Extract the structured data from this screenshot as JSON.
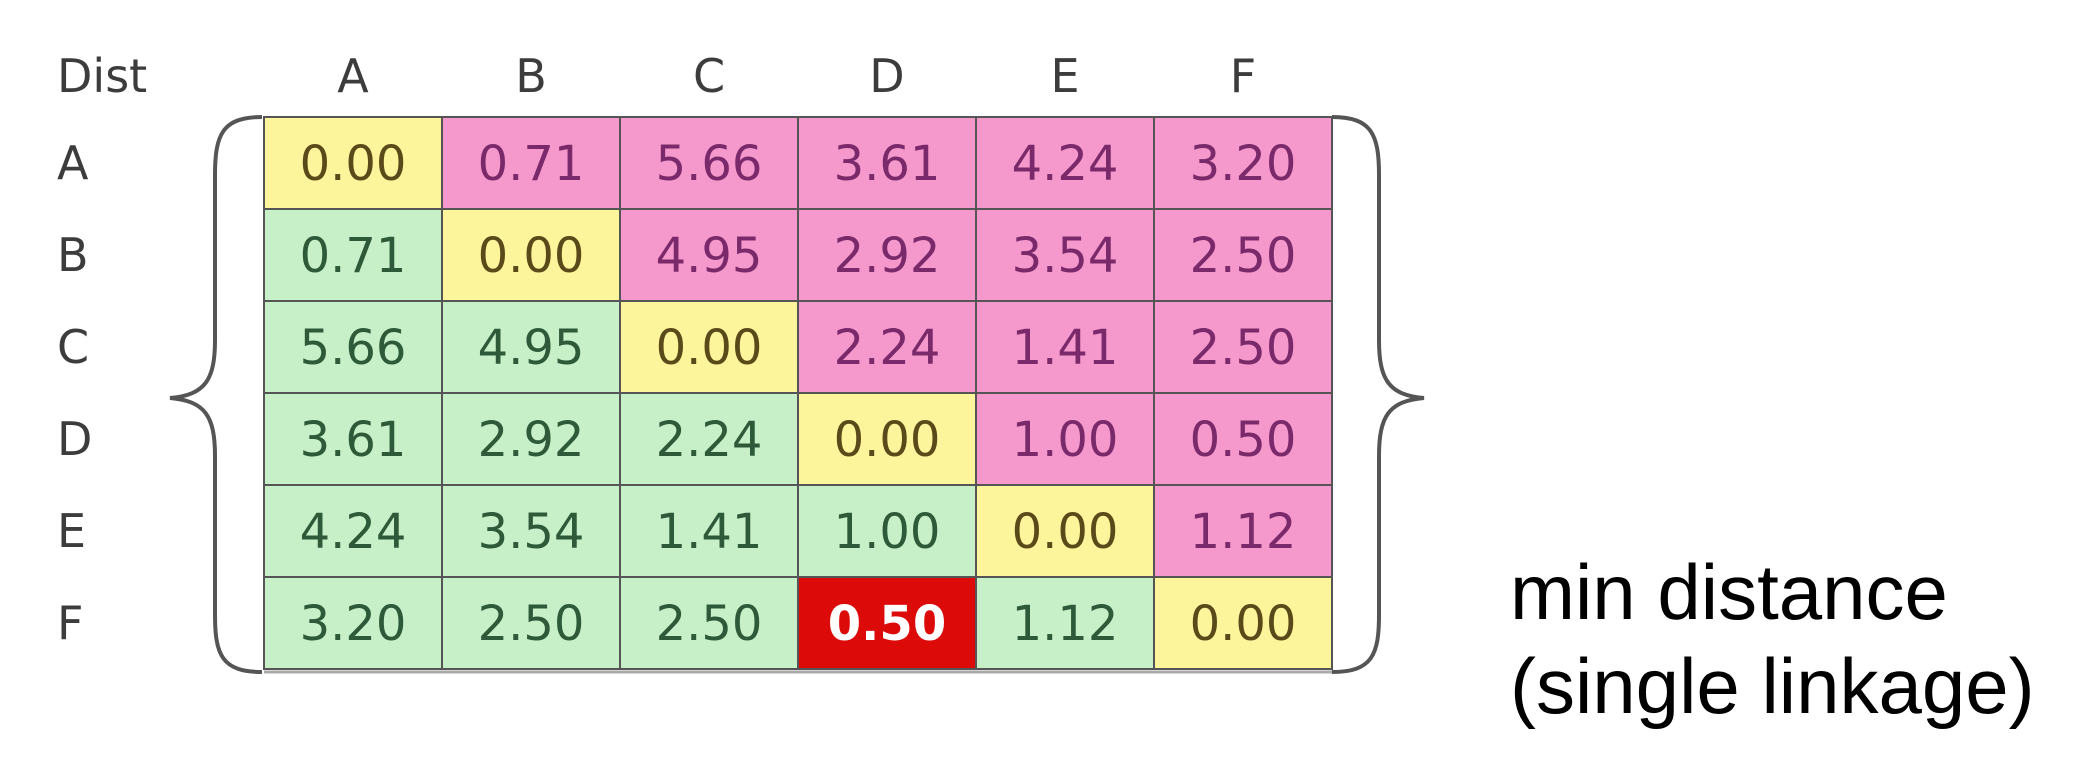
{
  "chart_data": {
    "type": "heatmap",
    "corner_label": "Dist",
    "columns": [
      "A",
      "B",
      "C",
      "D",
      "E",
      "F"
    ],
    "rows": [
      "A",
      "B",
      "C",
      "D",
      "E",
      "F"
    ],
    "values": [
      [
        "0.00",
        "0.71",
        "5.66",
        "3.61",
        "4.24",
        "3.20"
      ],
      [
        "0.71",
        "0.00",
        "4.95",
        "2.92",
        "3.54",
        "2.50"
      ],
      [
        "5.66",
        "4.95",
        "0.00",
        "2.24",
        "1.41",
        "2.50"
      ],
      [
        "3.61",
        "2.92",
        "2.24",
        "0.00",
        "1.00",
        "0.50"
      ],
      [
        "4.24",
        "3.54",
        "1.41",
        "1.00",
        "0.00",
        "1.12"
      ],
      [
        "3.20",
        "2.50",
        "2.50",
        "0.50",
        "1.12",
        "0.00"
      ]
    ],
    "highlight": {
      "row": 5,
      "column": 3
    },
    "colors": {
      "diagonal": "#fdf59c",
      "upper": "#f598cc",
      "lower": "#c8f0c8",
      "highlight": "#dd0a0a",
      "diagonal_text": "#5a4a1a",
      "upper_text": "#7a2a6a",
      "lower_text": "#2e5a3a",
      "highlight_text": "#ffffff"
    }
  },
  "caption": {
    "line1": "min distance",
    "line2": "(single linkage)"
  }
}
